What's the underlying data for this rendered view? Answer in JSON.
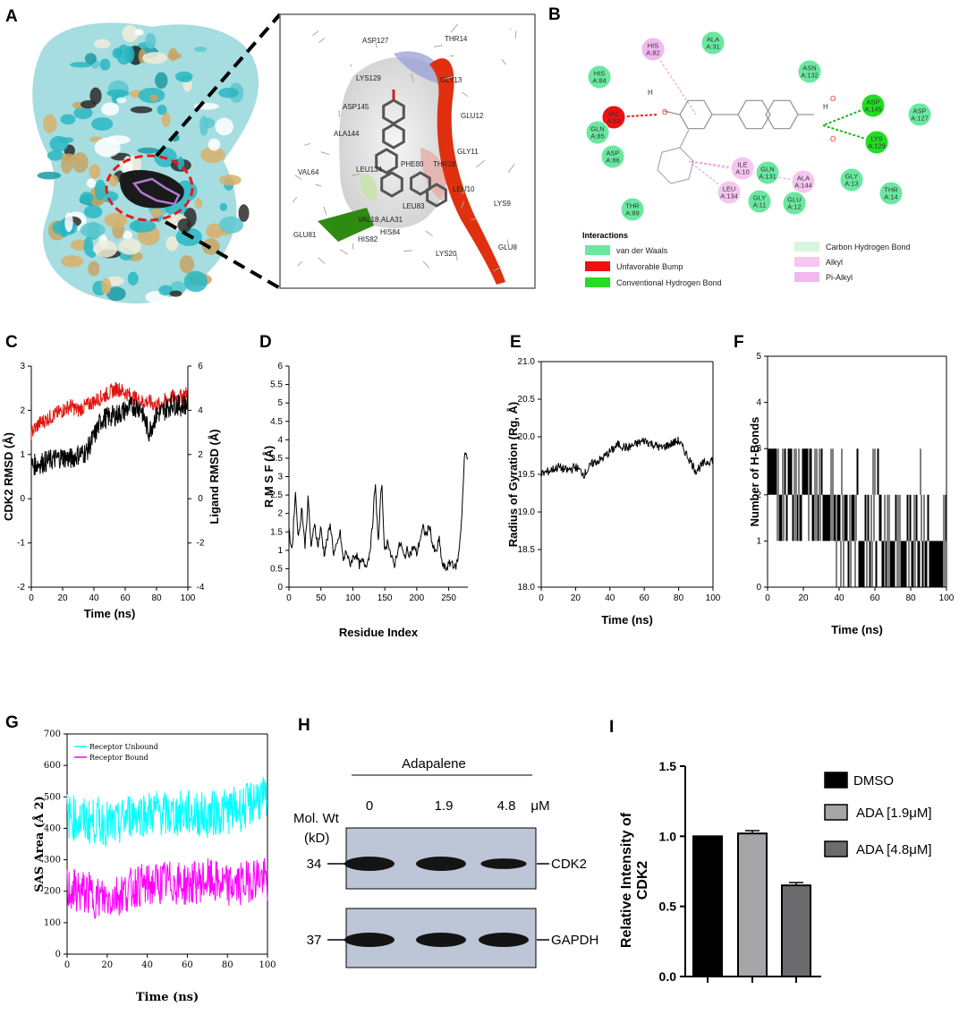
{
  "colors": {
    "red": "#e0140e",
    "black": "#000000",
    "cyan": "#00ffff",
    "magenta": "#ff00ff",
    "teal": "#2ab3bd",
    "tan": "#c8a463",
    "vdw": "#69e8a0",
    "bump": "#ee1111",
    "hbond": "#22dd22",
    "chb": "#d9f5df",
    "alkyl": "#f6c6f0",
    "pialkyl": "#f1b8ee",
    "bar_dmso": "#000000",
    "bar_ada19": "#a6a6a8",
    "bar_ada48": "#6c6c6e",
    "ribbon": "#e03010",
    "ribbon_green": "#2f8a12"
  },
  "panelA": {
    "label": "A",
    "residues": [
      "ASP127",
      "THR14",
      "LYS129",
      "GLY13",
      "ASP145",
      "GLU12",
      "ALA144",
      "GLY11",
      "VAL64",
      "LEU134",
      "PHE80",
      "THR18",
      "LEU10",
      "LYS9",
      "VAL18",
      "ALA31",
      "GLU81",
      "HIS82",
      "HIS84",
      "LYS20",
      "GLU8",
      "LEU83"
    ]
  },
  "panelB": {
    "label": "B",
    "residues": [
      {
        "name": "HIS",
        "num": "A:82",
        "type": "pialkyl"
      },
      {
        "name": "ALA",
        "num": "A:31",
        "type": "vdw"
      },
      {
        "name": "HIS",
        "num": "A:84",
        "type": "vdw"
      },
      {
        "name": "ASN",
        "num": "A:132",
        "type": "vdw"
      },
      {
        "name": "VAL",
        "num": "A:83",
        "type": "bump"
      },
      {
        "name": "GLN",
        "num": "A:85",
        "type": "vdw"
      },
      {
        "name": "ASP",
        "num": "A:145",
        "type": "hbond"
      },
      {
        "name": "ASP",
        "num": "A:127",
        "type": "vdw"
      },
      {
        "name": "LYS",
        "num": "A:129",
        "type": "hbond"
      },
      {
        "name": "ASP",
        "num": "A:86",
        "type": "vdw"
      },
      {
        "name": "ILE",
        "num": "A:10",
        "type": "alkyl"
      },
      {
        "name": "GLN",
        "num": "A:131",
        "type": "vdw"
      },
      {
        "name": "ALA",
        "num": "A:144",
        "type": "alkyl"
      },
      {
        "name": "GLY",
        "num": "A:13",
        "type": "vdw"
      },
      {
        "name": "LEU",
        "num": "A:134",
        "type": "alkyl"
      },
      {
        "name": "GLY",
        "num": "A:11",
        "type": "vdw"
      },
      {
        "name": "GLU",
        "num": "A:12",
        "type": "vdw"
      },
      {
        "name": "THR",
        "num": "A:14",
        "type": "vdw"
      },
      {
        "name": "THR",
        "num": "A:89",
        "type": "vdw"
      }
    ],
    "atoms": [
      "H",
      "O",
      "H",
      "O",
      "O"
    ],
    "interactions_title": "Interactions",
    "legend": [
      {
        "label": "van der Waals",
        "type": "vdw"
      },
      {
        "label": "Unfavorable Bump",
        "type": "bump"
      },
      {
        "label": "Conventional Hydrogen Bond",
        "type": "hbond"
      },
      {
        "label": "Carbon Hydrogen Bond",
        "type": "chb"
      },
      {
        "label": "Alkyl",
        "type": "alkyl"
      },
      {
        "label": "Pi-Alkyl",
        "type": "pialkyl"
      }
    ]
  },
  "chart_data": [
    {
      "panel": "C",
      "type": "line",
      "title": "",
      "xlabel": "Time (ns)",
      "ylabel": "CDK2 RMSD (Å)",
      "y2label": "Ligand RMSD (Å)",
      "xlim": [
        0,
        100
      ],
      "ylim": [
        -2,
        3
      ],
      "y2lim": [
        -4,
        6
      ],
      "xticks": [
        "0",
        "20",
        "40",
        "60",
        "80",
        "100"
      ],
      "yticks": [
        "-2",
        "-1",
        "0",
        "1",
        "2",
        "3"
      ],
      "y2ticks": [
        "-4",
        "-2",
        "0",
        "2",
        "4",
        "6"
      ],
      "series": [
        {
          "name": "CDK2 RMSD",
          "axis": "left",
          "color": "red",
          "x": [
            0,
            5,
            10,
            15,
            20,
            25,
            30,
            35,
            40,
            45,
            50,
            55,
            60,
            65,
            70,
            75,
            80,
            85,
            90,
            95,
            100
          ],
          "y": [
            1.5,
            1.7,
            1.8,
            1.9,
            2.0,
            2.1,
            2.0,
            2.1,
            2.2,
            2.3,
            2.4,
            2.5,
            2.4,
            2.3,
            2.2,
            2.2,
            2.1,
            2.2,
            2.3,
            2.3,
            2.4
          ]
        },
        {
          "name": "Ligand RMSD",
          "axis": "right",
          "color": "black",
          "x": [
            0,
            5,
            10,
            15,
            20,
            25,
            30,
            35,
            40,
            45,
            50,
            55,
            60,
            65,
            70,
            75,
            80,
            85,
            90,
            95,
            100
          ],
          "y": [
            1.5,
            1.6,
            1.7,
            1.8,
            1.9,
            1.8,
            2.0,
            2.1,
            2.8,
            3.6,
            3.7,
            3.8,
            4.0,
            4.2,
            4.1,
            3.0,
            3.8,
            4.0,
            4.3,
            4.2,
            4.3
          ]
        }
      ]
    },
    {
      "panel": "D",
      "type": "line",
      "xlabel": "Residue Index",
      "ylabel": "R M S F (Å)",
      "xlim": [
        0,
        280
      ],
      "ylim": [
        0,
        6
      ],
      "xticks": [
        "0",
        "50",
        "100",
        "150",
        "200",
        "250"
      ],
      "yticks": [
        "0",
        "0.5",
        "1",
        "1.5",
        "2",
        "2.5",
        "3",
        "3.5",
        "4",
        "4.5",
        "5",
        "5.5",
        "6"
      ],
      "series": [
        {
          "name": "RMSF",
          "color": "black",
          "x": [
            0,
            5,
            10,
            15,
            20,
            25,
            30,
            35,
            40,
            45,
            50,
            55,
            60,
            65,
            70,
            75,
            80,
            85,
            90,
            95,
            100,
            105,
            110,
            115,
            120,
            125,
            130,
            135,
            140,
            145,
            150,
            155,
            160,
            165,
            170,
            175,
            180,
            185,
            190,
            195,
            200,
            205,
            210,
            215,
            220,
            225,
            230,
            235,
            240,
            245,
            250,
            255,
            260,
            265,
            270,
            275
          ],
          "y": [
            1.5,
            1.0,
            2.6,
            1.3,
            2.2,
            1.1,
            2.4,
            1.0,
            1.8,
            1.1,
            1.6,
            0.9,
            1.3,
            1.7,
            0.9,
            1.1,
            1.5,
            0.7,
            1.0,
            0.6,
            0.8,
            0.9,
            0.6,
            0.7,
            0.6,
            0.8,
            1.5,
            2.8,
            1.2,
            2.9,
            0.9,
            1.3,
            0.8,
            0.6,
            1.0,
            1.2,
            0.8,
            1.0,
            0.9,
            1.1,
            0.9,
            1.3,
            1.6,
            1.4,
            1.7,
            1.1,
            0.9,
            1.3,
            0.6,
            0.5,
            0.6,
            0.7,
            0.5,
            0.8,
            1.8,
            3.6
          ]
        }
      ]
    },
    {
      "panel": "E",
      "type": "line",
      "xlabel": "Time (ns)",
      "ylabel": "Radius of Gyration (Rg, Å)",
      "xlim": [
        0,
        100
      ],
      "ylim": [
        18,
        21
      ],
      "xticks": [
        "0",
        "20",
        "40",
        "60",
        "80",
        "100"
      ],
      "yticks": [
        "18.0",
        "18.5",
        "19.0",
        "19.5",
        "20.0",
        "20.5",
        "21.0"
      ],
      "series": [
        {
          "name": "Rg",
          "color": "black",
          "x": [
            0,
            5,
            10,
            15,
            20,
            25,
            30,
            35,
            40,
            45,
            50,
            55,
            60,
            65,
            70,
            75,
            80,
            85,
            90,
            95,
            100
          ],
          "y": [
            19.5,
            19.55,
            19.6,
            19.55,
            19.6,
            19.5,
            19.65,
            19.7,
            19.8,
            19.9,
            19.85,
            19.9,
            19.95,
            19.9,
            19.85,
            19.9,
            19.95,
            19.75,
            19.55,
            19.65,
            19.7
          ]
        }
      ]
    },
    {
      "panel": "F",
      "type": "line",
      "xlabel": "Time (ns)",
      "ylabel": "Number of H-Bonds",
      "xlim": [
        0,
        100
      ],
      "ylim": [
        0,
        5
      ],
      "xticks": [
        "0",
        "20",
        "40",
        "60",
        "80",
        "100"
      ],
      "yticks": [
        "0",
        "1",
        "2",
        "3",
        "4",
        "5"
      ],
      "series": [
        {
          "name": "H-Bonds",
          "color": "black",
          "x": [
            0,
            5,
            10,
            15,
            20,
            25,
            30,
            35,
            40,
            45,
            50,
            55,
            60,
            65,
            70,
            75,
            80,
            85,
            90,
            95,
            100
          ],
          "y": [
            3,
            3,
            3,
            2,
            3,
            3,
            3,
            2,
            2,
            1,
            2,
            1,
            2,
            1,
            1,
            1,
            1,
            2,
            1,
            1,
            1
          ]
        }
      ]
    },
    {
      "panel": "G",
      "type": "line",
      "xlabel": "Time (ns)",
      "ylabel": "SAS Area (Å 2)",
      "xlim": [
        0,
        100
      ],
      "ylim": [
        0,
        700
      ],
      "xticks": [
        "0",
        "20",
        "40",
        "60",
        "80",
        "100"
      ],
      "yticks": [
        "0",
        "100",
        "200",
        "300",
        "400",
        "500",
        "600",
        "700"
      ],
      "series": [
        {
          "name": "Receptor Unbound",
          "color": "cyan",
          "x": [
            0,
            5,
            10,
            15,
            20,
            25,
            30,
            35,
            40,
            45,
            50,
            55,
            60,
            65,
            70,
            75,
            80,
            85,
            90,
            95,
            100
          ],
          "y": [
            440,
            430,
            420,
            425,
            415,
            405,
            440,
            450,
            445,
            455,
            440,
            445,
            450,
            445,
            440,
            450,
            455,
            460,
            470,
            500,
            480
          ]
        },
        {
          "name": "Receptor Bound",
          "color": "magenta",
          "x": [
            0,
            5,
            10,
            15,
            20,
            25,
            30,
            35,
            40,
            45,
            50,
            55,
            60,
            65,
            70,
            75,
            80,
            85,
            90,
            95,
            100
          ],
          "y": [
            205,
            200,
            195,
            180,
            175,
            190,
            200,
            220,
            215,
            225,
            230,
            225,
            220,
            230,
            235,
            225,
            215,
            220,
            230,
            250,
            230
          ]
        }
      ]
    },
    {
      "panel": "I",
      "type": "bar",
      "xlabel": "",
      "ylabel": "Relative Intensity of CDK2",
      "ylim": [
        0,
        1.5
      ],
      "yticks": [
        "0.0",
        "0.5",
        "1.0",
        "1.5"
      ],
      "categories": [
        "DMSO",
        "ADA [1.9μM]",
        "ADA [4.8μM]"
      ],
      "values": [
        1.0,
        1.02,
        0.65
      ],
      "errors": [
        0,
        0.02,
        0.02
      ]
    }
  ],
  "panelH": {
    "label": "H",
    "drug": "Adapalene",
    "concs": [
      "0",
      "1.9",
      "4.8"
    ],
    "unit": "μM",
    "mw_line1": "Mol. Wt",
    "mw_line2": "(kD)",
    "bands": [
      {
        "mw": "34",
        "name": "CDK2",
        "intensity": [
          1.0,
          1.0,
          0.65
        ]
      },
      {
        "mw": "37",
        "name": "GAPDH",
        "intensity": [
          1.0,
          1.0,
          1.0
        ]
      }
    ]
  }
}
